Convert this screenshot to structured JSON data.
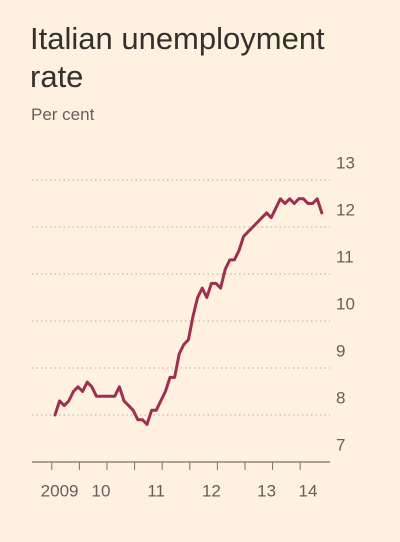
{
  "chart_data": {
    "type": "line",
    "title": "Italian unemployment rate",
    "subtitle": "Per cent",
    "categories": [
      null,
      "2009",
      null,
      null,
      null,
      null,
      null,
      null,
      null,
      null,
      "10",
      null,
      null,
      null,
      null,
      null,
      null,
      null,
      null,
      null,
      null,
      null,
      "11",
      null,
      null,
      null,
      null,
      null,
      null,
      null,
      null,
      null,
      null,
      null,
      "12",
      null,
      null,
      null,
      null,
      null,
      null,
      null,
      null,
      null,
      null,
      null,
      "13",
      null,
      null,
      null,
      null,
      null,
      null,
      null,
      null,
      "14",
      null,
      null,
      null
    ],
    "series": [
      {
        "name": "Unemployment rate",
        "color": "#9e2f50",
        "values": [
          8.0,
          8.3,
          8.2,
          8.3,
          8.5,
          8.6,
          8.5,
          8.7,
          8.6,
          8.4,
          8.4,
          8.4,
          8.4,
          8.4,
          8.6,
          8.3,
          8.2,
          8.1,
          7.9,
          7.9,
          7.8,
          8.1,
          8.1,
          8.3,
          8.5,
          8.8,
          8.8,
          9.3,
          9.5,
          9.6,
          10.1,
          10.5,
          10.7,
          10.5,
          10.8,
          10.8,
          10.7,
          11.1,
          11.3,
          11.3,
          11.5,
          11.8,
          11.9,
          12.0,
          12.1,
          12.2,
          12.3,
          12.2,
          12.4,
          12.6,
          12.5,
          12.6,
          12.5,
          12.6,
          12.6,
          12.5,
          12.5,
          12.6,
          12.3
        ]
      }
    ],
    "ylim": [
      7,
      13
    ],
    "yticks": [
      7,
      8,
      9,
      10,
      11,
      12,
      13
    ],
    "grid": true
  }
}
